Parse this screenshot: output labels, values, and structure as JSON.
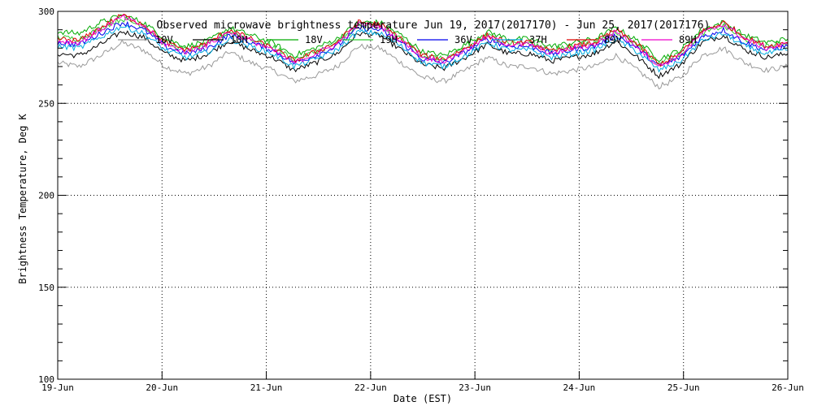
{
  "chart_data": {
    "type": "line",
    "title": "Observed microwave brightness temperature Jun 19, 2017(2017170) - Jun 25, 2017(2017176)",
    "xlabel": "Date (EST)",
    "ylabel": "Brightness Temperature, Deg K",
    "xlim": [
      0,
      7
    ],
    "ylim": [
      100,
      300
    ],
    "x_tick_labels": [
      "19-Jun",
      "20-Jun",
      "21-Jun",
      "22-Jun",
      "23-Jun",
      "24-Jun",
      "25-Jun",
      "26-Jun"
    ],
    "y_ticks": [
      100,
      150,
      200,
      250,
      300
    ],
    "grid": "dotted",
    "legend_position": "top",
    "series": [
      {
        "name": "10V",
        "color": "#999999",
        "values": [
          272,
          270,
          276,
          283,
          279,
          270,
          266,
          270,
          278,
          272,
          268,
          262,
          265,
          270,
          281,
          280,
          272,
          264,
          262,
          268,
          275,
          270,
          270,
          266,
          268,
          270,
          276,
          268,
          259,
          264,
          276,
          280,
          272,
          268,
          270
        ]
      },
      {
        "name": "10H",
        "color": "#000000",
        "values": [
          277,
          276,
          282,
          289,
          286,
          277,
          273,
          277,
          284,
          279,
          275,
          268,
          272,
          277,
          288,
          287,
          279,
          271,
          269,
          275,
          282,
          277,
          277,
          273,
          275,
          277,
          284,
          275,
          265,
          271,
          283,
          287,
          279,
          275,
          277
        ]
      },
      {
        "name": "18V",
        "color": "#00aa00",
        "values": [
          289,
          288,
          294,
          298,
          294,
          285,
          281,
          284,
          291,
          287,
          283,
          276,
          280,
          285,
          294,
          294,
          287,
          278,
          276,
          282,
          289,
          285,
          285,
          281,
          283,
          285,
          291,
          284,
          274,
          279,
          290,
          294,
          287,
          283,
          285
        ]
      },
      {
        "name": "19H",
        "color": "#33cc33",
        "values": [
          286,
          285,
          291,
          296,
          292,
          283,
          279,
          282,
          289,
          285,
          281,
          274,
          278,
          283,
          292,
          292,
          285,
          276,
          274,
          280,
          287,
          283,
          283,
          279,
          281,
          283,
          289,
          282,
          272,
          277,
          288,
          292,
          285,
          281,
          283
        ]
      },
      {
        "name": "36V",
        "color": "#0000ee",
        "values": [
          283,
          282,
          288,
          294,
          290,
          281,
          277,
          280,
          287,
          283,
          279,
          272,
          276,
          281,
          291,
          290,
          283,
          274,
          272,
          278,
          285,
          281,
          281,
          277,
          279,
          281,
          287,
          280,
          270,
          275,
          286,
          290,
          283,
          279,
          281
        ]
      },
      {
        "name": "37H",
        "color": "#00aadd",
        "values": [
          281,
          280,
          286,
          292,
          288,
          279,
          275,
          278,
          285,
          281,
          277,
          270,
          274,
          279,
          289,
          288,
          281,
          272,
          270,
          276,
          283,
          279,
          279,
          275,
          277,
          279,
          285,
          278,
          268,
          273,
          284,
          288,
          281,
          277,
          279
        ]
      },
      {
        "name": "89V",
        "color": "#dd0000",
        "values": [
          285,
          284,
          291,
          298,
          293,
          283,
          279,
          283,
          290,
          285,
          280,
          273,
          278,
          283,
          294,
          293,
          285,
          276,
          274,
          280,
          287,
          283,
          283,
          278,
          281,
          283,
          290,
          282,
          271,
          277,
          289,
          294,
          286,
          281,
          283
        ]
      },
      {
        "name": "89H",
        "color": "#ee00cc",
        "values": [
          284,
          283,
          290,
          297,
          292,
          282,
          278,
          282,
          289,
          284,
          279,
          272,
          277,
          282,
          293,
          292,
          284,
          275,
          273,
          279,
          286,
          282,
          282,
          277,
          280,
          282,
          289,
          281,
          270,
          276,
          288,
          293,
          285,
          280,
          282
        ]
      }
    ]
  }
}
